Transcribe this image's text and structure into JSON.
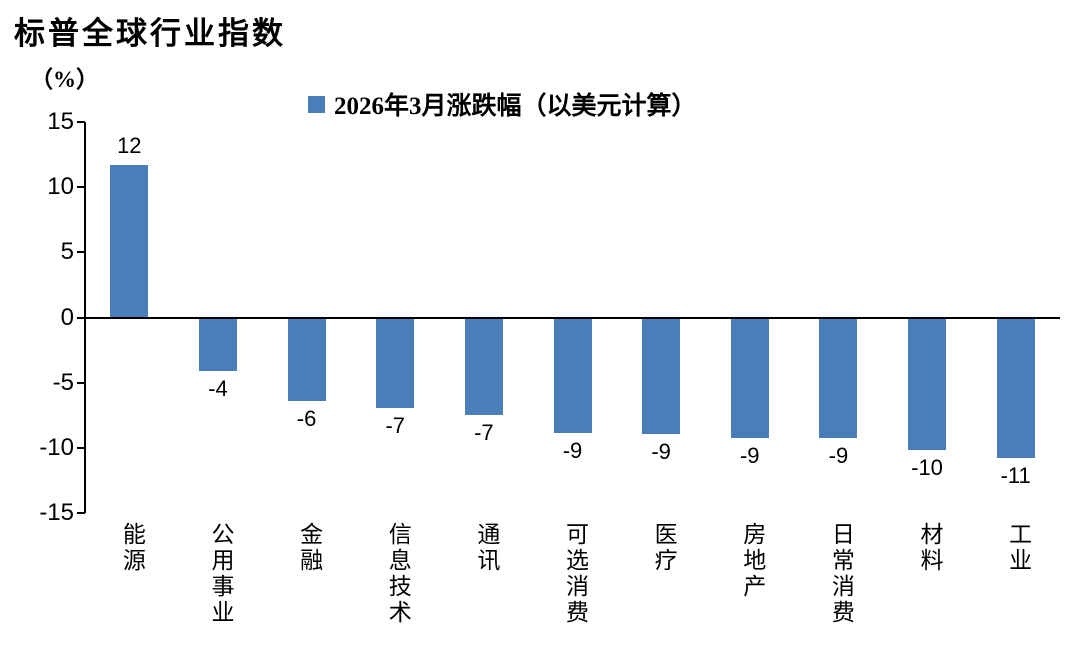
{
  "chart_data": {
    "type": "bar",
    "title": "标普全球行业指数",
    "unit_label": "（%）",
    "legend": "2026年3月涨跌幅（以美元计算）",
    "categories": [
      "能源",
      "公用事业",
      "金融",
      "信息技术",
      "通讯",
      "可选消费",
      "医疗",
      "房地产",
      "日常消费",
      "材料",
      "工业"
    ],
    "values": [
      12,
      -4,
      -6,
      -7,
      -7,
      -9,
      -9,
      -9,
      -9,
      -10,
      -11
    ],
    "values_precise": [
      11.7,
      -4.0,
      -6.3,
      -6.9,
      -7.4,
      -8.8,
      -8.9,
      -9.2,
      -9.2,
      -10.1,
      -10.7
    ],
    "yticks": [
      15,
      10,
      5,
      0,
      -5,
      -10,
      -15
    ],
    "ylim": [
      -15,
      15
    ],
    "bar_color": "#4A7EBB",
    "grid": false,
    "legend_position": "top"
  }
}
